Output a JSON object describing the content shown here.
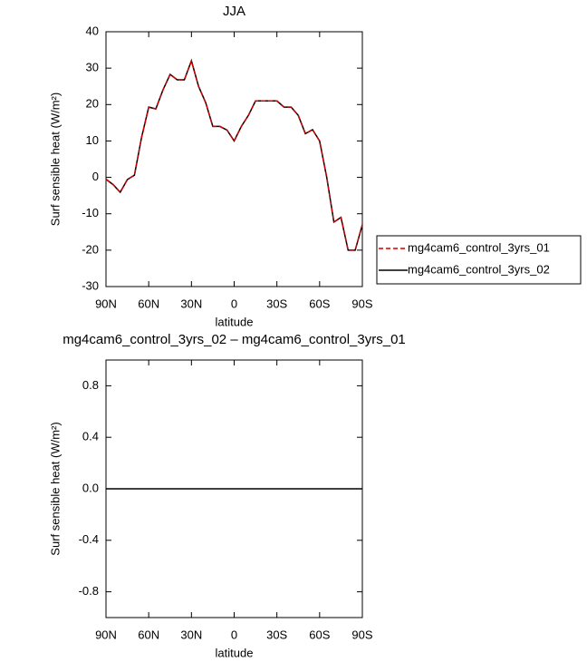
{
  "chart_data": [
    {
      "type": "line",
      "title": "JJA",
      "x_label": "latitude",
      "y_label": "Surf sensible heat (W/m²)",
      "x": [
        90,
        85,
        80,
        75,
        70,
        65,
        60,
        55,
        50,
        45,
        40,
        35,
        30,
        25,
        20,
        15,
        10,
        5,
        0,
        -5,
        -10,
        -15,
        -20,
        -25,
        -30,
        -35,
        -40,
        -45,
        -50,
        -55,
        -60,
        -65,
        -70,
        -75,
        -80,
        -85,
        -90
      ],
      "series": [
        {
          "name": "mg4cam6_control_3yrs_01",
          "color": "#cc0000",
          "dashed": true,
          "values": [
            -0.5,
            -2,
            -4.1,
            -0.6,
            0.6,
            11,
            19.3,
            18.8,
            24,
            28.3,
            26.8,
            26.8,
            32,
            25,
            20.5,
            14,
            14,
            13,
            10,
            14,
            17,
            21,
            21,
            21,
            21,
            19.3,
            19.3,
            17,
            12,
            13.1,
            10,
            0,
            -12.3,
            -11,
            -20,
            -20,
            -13
          ]
        },
        {
          "name": "mg4cam6_control_3yrs_02",
          "color": "#000000",
          "dashed": false,
          "values": [
            -0.5,
            -2,
            -4.1,
            -0.6,
            0.6,
            11,
            19.3,
            18.8,
            24,
            28.3,
            26.8,
            26.8,
            32,
            25,
            20.5,
            14,
            14,
            13,
            10,
            14,
            17,
            21,
            21,
            21,
            21,
            19.3,
            19.3,
            17,
            12,
            13.1,
            10,
            0,
            -12.3,
            -11,
            -20,
            -20,
            -13
          ]
        }
      ],
      "xlim": [
        90,
        -90
      ],
      "xticks": [
        {
          "value": 90,
          "label": "90N"
        },
        {
          "value": 60,
          "label": "60N"
        },
        {
          "value": 30,
          "label": "30N"
        },
        0,
        {
          "value": -30,
          "label": "30S"
        },
        {
          "value": -60,
          "label": "60S"
        },
        {
          "value": -90,
          "label": "90S"
        }
      ],
      "ylim": [
        -30,
        40
      ],
      "yticks": [
        -30,
        -20,
        -10,
        0,
        10,
        20,
        30,
        40
      ],
      "legend": "right"
    },
    {
      "type": "line",
      "title": "mg4cam6_control_3yrs_02 – mg4cam6_control_3yrs_01",
      "x_label": "latitude",
      "y_label": "Surf sensible heat (W/m²)",
      "x": [
        90,
        -90
      ],
      "series": [
        {
          "color": "#000000",
          "dashed": false,
          "values": [
            0,
            0
          ]
        }
      ],
      "xlim": [
        90,
        -90
      ],
      "xticks": [
        {
          "value": 90,
          "label": "90N"
        },
        {
          "value": 60,
          "label": "60N"
        },
        {
          "value": 30,
          "label": "30N"
        },
        0,
        {
          "value": -30,
          "label": "30S"
        },
        {
          "value": -60,
          "label": "60S"
        },
        {
          "value": -90,
          "label": "90S"
        }
      ],
      "ylim": [
        -1,
        1
      ],
      "yticks": [
        -0.8,
        -0.4,
        {
          "value": 0,
          "label": "0.0"
        },
        0.4,
        0.8
      ]
    }
  ]
}
